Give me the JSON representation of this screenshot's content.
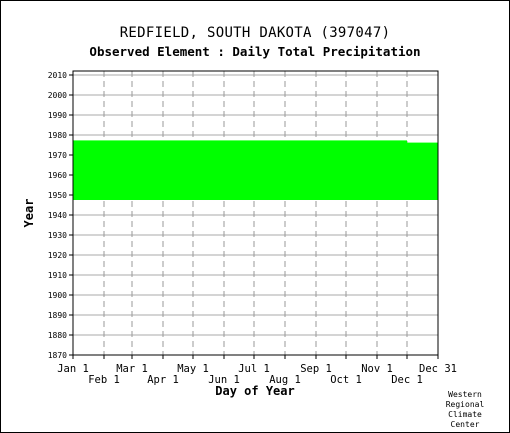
{
  "station_title": "REDFIELD, SOUTH DAKOTA   (397047)",
  "element_title": "Observed Element : Daily Total Precipitation",
  "credit_lines": [
    "Western",
    "Regional",
    "Climate",
    "Center"
  ],
  "chart_data": {
    "type": "area",
    "title": "REDFIELD, SOUTH DAKOTA   (397047)",
    "subtitle": "Observed Element : Daily Total Precipitation",
    "xlabel": "Day of Year",
    "ylabel": "Year",
    "x_range_days": [
      1,
      366
    ],
    "ylim": [
      1870,
      2012
    ],
    "y_ticks": [
      1870,
      1880,
      1890,
      1900,
      1910,
      1920,
      1930,
      1940,
      1950,
      1960,
      1970,
      1980,
      1990,
      2000,
      2010
    ],
    "x_ticks_top_row": [
      {
        "label": "Jan 1",
        "day": 1
      },
      {
        "label": "Mar 1",
        "day": 60
      },
      {
        "label": "May 1",
        "day": 121
      },
      {
        "label": "Jul 1",
        "day": 182
      },
      {
        "label": "Sep 1",
        "day": 244
      },
      {
        "label": "Nov 1",
        "day": 305
      },
      {
        "label": "Dec 31",
        "day": 366
      }
    ],
    "x_ticks_bottom_row": [
      {
        "label": "Feb 1",
        "day": 32
      },
      {
        "label": "Apr 1",
        "day": 91
      },
      {
        "label": "Jun 1",
        "day": 152
      },
      {
        "label": "Aug 1",
        "day": 213
      },
      {
        "label": "Oct 1",
        "day": 274
      },
      {
        "label": "Dec 1",
        "day": 335
      }
    ],
    "grid": true,
    "series": [
      {
        "color": "#00ff00",
        "blocks": [
          {
            "day_start": 1,
            "day_end": 335,
            "year_start": 1947.5,
            "year_end": 1977.3
          },
          {
            "day_start": 335,
            "day_end": 366,
            "year_start": 1947.5,
            "year_end": 1976.2
          }
        ]
      }
    ]
  }
}
